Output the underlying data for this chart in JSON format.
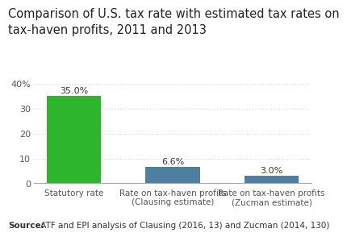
{
  "title_line1": "Comparison of U.S. tax rate with estimated tax rates on",
  "title_line2": "tax-haven profits, 2011 and 2013",
  "categories": [
    "Statutory rate",
    "Rate on tax-haven profits\n(Clausing estimate)",
    "Rate on tax-haven profits\n(Zucman estimate)"
  ],
  "values": [
    35.0,
    6.6,
    3.0
  ],
  "bar_colors": [
    "#2db52d",
    "#4e7fa0",
    "#4e7fa0"
  ],
  "value_labels": [
    "35.0%",
    "6.6%",
    "3.0%"
  ],
  "ylim": [
    0,
    44
  ],
  "yticks": [
    0,
    10,
    20,
    30,
    40
  ],
  "ytick_labels": [
    "0",
    "10",
    "20",
    "30",
    "40%"
  ],
  "source_bold": "Source:",
  "source_rest": " ATF and EPI analysis of Clausing (2016, 13) and Zucman (2014, 130)",
  "background_color": "#ffffff",
  "grid_color": "#bbbbbb",
  "title_fontsize": 10.5,
  "label_fontsize": 7.5,
  "value_fontsize": 8,
  "source_fontsize": 7.5,
  "ytick_fontsize": 8
}
